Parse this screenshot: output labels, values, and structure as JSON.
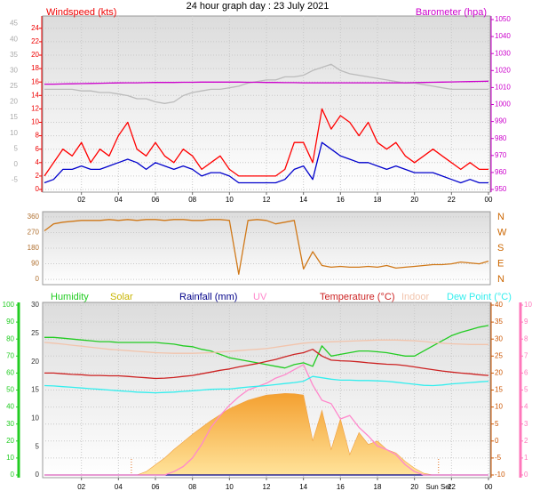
{
  "chart_data": [
    {
      "type": "line",
      "title": "24 hour graph day : 23 July 2021",
      "ylabel": "Windspeed (kts)",
      "y2label": "Barometer (hpa)",
      "x": [
        0,
        0.5,
        1,
        1.5,
        2,
        2.5,
        3,
        3.5,
        4,
        4.5,
        5,
        5.5,
        6,
        6.5,
        7,
        7.5,
        8,
        8.5,
        9,
        9.5,
        10,
        10.5,
        11,
        11.5,
        12,
        12.5,
        13,
        13.5,
        14,
        14.5,
        15,
        15.5,
        16,
        16.5,
        17,
        17.5,
        18,
        18.5,
        19,
        19.5,
        20,
        20.5,
        21,
        21.5,
        22,
        22.5,
        23,
        23.5,
        24
      ],
      "xlim": [
        0,
        24
      ],
      "xticks": [
        {
          "value": 2,
          "label": "02"
        },
        {
          "value": 4,
          "label": "04"
        },
        {
          "value": 6,
          "label": "06"
        },
        {
          "value": 8,
          "label": "08"
        },
        10,
        12,
        14,
        16,
        18,
        20,
        22,
        {
          "value": 24,
          "label": "00"
        }
      ],
      "ylim": [
        0,
        25.3
      ],
      "yticks": [
        0,
        2,
        4,
        6,
        8,
        10,
        12,
        14,
        16,
        18,
        20,
        22,
        24
      ],
      "ycolor": "#ee0000",
      "y2lim": [
        950,
        1050
      ],
      "y2ticks": [
        950,
        960,
        970,
        980,
        990,
        1000,
        1010,
        1020,
        1030,
        1040,
        1050
      ],
      "y2color": "#cc00cc",
      "y3lim": [
        -8,
        46.3
      ],
      "y3ticks": [
        -5,
        0,
        5,
        10,
        15,
        20,
        25,
        30,
        35,
        40,
        45
      ],
      "y3color": "#aaaaaa",
      "grid": true,
      "series": [
        {
          "color": "#bbbbbb",
          "axis": "y3",
          "values": [
            24,
            24,
            24,
            24,
            23.5,
            23.5,
            23,
            23,
            22.5,
            22,
            21,
            21,
            20,
            19.5,
            20,
            22,
            23,
            23.5,
            24,
            24,
            24.5,
            25,
            26,
            26.5,
            27,
            27,
            28,
            28,
            28.5,
            30,
            31,
            32,
            30,
            29,
            28.5,
            28,
            27.5,
            27,
            26.5,
            26,
            26,
            25.5,
            25,
            24.5,
            24,
            24,
            24,
            24,
            24
          ]
        },
        {
          "color": "#ff0000",
          "axis": "y",
          "values": [
            2,
            4,
            6,
            5,
            7,
            4,
            6,
            5,
            8,
            10,
            6,
            5,
            7,
            5,
            4,
            6,
            5,
            3,
            4,
            5,
            3,
            2,
            2,
            2,
            2,
            2,
            3,
            7,
            7,
            4,
            12,
            9,
            11,
            10,
            8,
            10,
            7,
            6,
            7,
            5,
            4,
            5,
            6,
            5,
            4,
            3,
            4,
            3,
            3
          ]
        },
        {
          "color": "#0000cc",
          "axis": "y",
          "values": [
            1,
            1.5,
            3,
            3,
            3.5,
            3,
            3,
            3.5,
            4,
            4.5,
            4,
            3,
            4,
            3.5,
            3,
            3.5,
            3,
            2,
            2.5,
            2.5,
            2,
            1,
            1,
            1,
            1,
            1,
            1.5,
            3,
            3.5,
            1.5,
            7,
            6,
            5,
            4.5,
            4,
            4,
            3.5,
            3,
            3.5,
            3,
            2.5,
            2.5,
            2.5,
            2,
            1.5,
            1,
            1.5,
            1,
            1
          ]
        },
        {
          "color": "#cc00cc",
          "axis": "y2",
          "values": [
            1012.0,
            1012.0,
            1012.1,
            1012.2,
            1012.3,
            1012.4,
            1012.5,
            1012.6,
            1012.7,
            1012.8,
            1012.8,
            1012.9,
            1013.0,
            1013.0,
            1013.0,
            1013.1,
            1013.1,
            1013.2,
            1013.2,
            1013.2,
            1013.2,
            1013.2,
            1013.1,
            1013.1,
            1013.0,
            1013.0,
            1012.9,
            1012.9,
            1012.8,
            1012.8,
            1012.8,
            1012.8,
            1012.8,
            1012.8,
            1012.8,
            1012.8,
            1012.8,
            1012.8,
            1012.8,
            1012.8,
            1012.9,
            1013.0,
            1013.1,
            1013.2,
            1013.3,
            1013.4,
            1013.5,
            1013.6,
            1013.7
          ]
        }
      ]
    },
    {
      "type": "line",
      "x": [
        0,
        0.5,
        1,
        1.5,
        2,
        2.5,
        3,
        3.5,
        4,
        4.5,
        5,
        5.5,
        6,
        6.5,
        7,
        7.5,
        8,
        8.5,
        9,
        9.5,
        10,
        10.5,
        11,
        11.5,
        12,
        12.5,
        13,
        13.5,
        14,
        14.5,
        15,
        15.5,
        16,
        16.5,
        17,
        17.5,
        18,
        18.5,
        19,
        19.5,
        20,
        20.5,
        21,
        21.5,
        22,
        22.5,
        23,
        23.5,
        24
      ],
      "xlim": [
        0,
        24
      ],
      "ylim": [
        -20,
        380
      ],
      "yticks": [
        0,
        90,
        180,
        270,
        360
      ],
      "ycolor": "#b07030",
      "y2lim": [
        -20,
        380
      ],
      "y2ticks": [
        {
          "value": 0,
          "label": "N"
        },
        {
          "value": 90,
          "label": "E"
        },
        {
          "value": 180,
          "label": "S"
        },
        {
          "value": 270,
          "label": "W"
        },
        {
          "value": 360,
          "label": "N"
        }
      ],
      "y2color": "#cc6600",
      "grid": true,
      "series": [
        {
          "color": "#d07818",
          "axis": "y",
          "values": [
            280,
            320,
            330,
            335,
            340,
            340,
            340,
            345,
            340,
            345,
            340,
            345,
            345,
            340,
            345,
            345,
            340,
            340,
            345,
            345,
            340,
            30,
            340,
            345,
            340,
            320,
            330,
            340,
            60,
            160,
            80,
            70,
            75,
            70,
            70,
            75,
            70,
            80,
            65,
            70,
            75,
            80,
            85,
            85,
            90,
            100,
            95,
            90,
            105
          ]
        }
      ]
    },
    {
      "type": "line",
      "x": [
        0,
        0.5,
        1,
        1.5,
        2,
        2.5,
        3,
        3.5,
        4,
        4.5,
        5,
        5.5,
        6,
        6.5,
        7,
        7.5,
        8,
        8.5,
        9,
        9.5,
        10,
        10.5,
        11,
        11.5,
        12,
        12.5,
        13,
        13.5,
        14,
        14.5,
        15,
        15.5,
        16,
        16.5,
        17,
        17.5,
        18,
        18.5,
        19,
        19.5,
        20,
        20.5,
        21,
        21.5,
        22,
        22.5,
        23,
        23.5,
        24
      ],
      "xlim": [
        0,
        24
      ],
      "xticks": [
        {
          "value": 2,
          "label": "02"
        },
        {
          "value": 4,
          "label": "04"
        },
        {
          "value": 6,
          "label": "06"
        },
        {
          "value": 8,
          "label": "08"
        },
        10,
        12,
        14,
        16,
        18,
        20,
        22,
        {
          "value": 24,
          "label": "00"
        }
      ],
      "ylim": [
        0,
        100
      ],
      "yticks": [
        0,
        10,
        20,
        30,
        40,
        50,
        60,
        70,
        80,
        90,
        100
      ],
      "ycolor": "#22cc22",
      "y2lim": [
        -10,
        40
      ],
      "y2ticks": [
        -10,
        -5,
        0,
        5,
        10,
        15,
        20,
        25,
        30,
        35,
        40
      ],
      "y2color": "#cc5500",
      "y3lim": [
        0,
        30
      ],
      "y3ticks": [
        0,
        5,
        10,
        15,
        20,
        25,
        30
      ],
      "y3color": "#333333",
      "y4lim": [
        0,
        10
      ],
      "y4ticks": [
        0,
        1,
        2,
        3,
        4,
        5,
        6,
        7,
        8,
        9,
        10
      ],
      "y4color": "#ff77bb",
      "y5lim": [
        0,
        1000
      ],
      "grid": true,
      "sunrise": 4.7,
      "sunset": 21.3,
      "sunset_label": "Sun Set",
      "series": [
        {
          "name": "Humidity",
          "color": "#22cc22",
          "axis": "y",
          "values": [
            81,
            81,
            80.5,
            80,
            79.5,
            79,
            78.5,
            78.5,
            78,
            78,
            78,
            78,
            78,
            77.5,
            77,
            76,
            75.5,
            74,
            73,
            71,
            69,
            68,
            67,
            66,
            65,
            64,
            63,
            65,
            66,
            64,
            76,
            70,
            71,
            72,
            73,
            73,
            72.5,
            72,
            71,
            70,
            70,
            73,
            76,
            79,
            82,
            84,
            85.5,
            87,
            88
          ]
        },
        {
          "name": "Solar",
          "color": "#c8b400",
          "axis": "y5",
          "area": true,
          "values": [
            0,
            0,
            0,
            0,
            0,
            0,
            0,
            0,
            0,
            0,
            0,
            20,
            60,
            100,
            150,
            195,
            240,
            280,
            320,
            355,
            390,
            415,
            440,
            455,
            470,
            475,
            480,
            478,
            470,
            200,
            380,
            150,
            330,
            120,
            250,
            180,
            200,
            150,
            130,
            80,
            40,
            10,
            0,
            0,
            0,
            0,
            0,
            0,
            0
          ]
        },
        {
          "name": "Rainfall (mm)",
          "color": "#000088",
          "axis": "y3",
          "values": [
            0,
            0,
            0,
            0,
            0,
            0,
            0,
            0,
            0,
            0,
            0,
            0,
            0,
            0,
            0,
            0,
            0,
            0,
            0,
            0,
            0,
            0,
            0,
            0,
            0,
            0,
            0,
            0,
            0,
            0,
            0,
            0,
            0,
            0,
            0,
            0,
            0,
            0,
            0,
            0,
            0,
            0,
            0,
            0,
            0,
            0,
            0,
            0,
            0
          ]
        },
        {
          "name": "UV",
          "color": "#ff88cc",
          "axis": "y4",
          "values": [
            0,
            0,
            0,
            0,
            0,
            0,
            0,
            0,
            0,
            0,
            0,
            0,
            0,
            0,
            0.2,
            0.5,
            1,
            1.8,
            2.8,
            3.5,
            4.1,
            4.6,
            5,
            5.2,
            5.4,
            5.7,
            5.9,
            6.2,
            6.5,
            5.3,
            4.4,
            4.2,
            3.3,
            3.5,
            2.8,
            2.3,
            1.7,
            1.5,
            1.2,
            0.6,
            0.2,
            0,
            0,
            0,
            0,
            0,
            0,
            0,
            0
          ]
        },
        {
          "name": "Temperature (°C)",
          "color": "#cc2222",
          "axis": "y2",
          "values": [
            20,
            20,
            19.8,
            19.6,
            19.5,
            19.3,
            19.3,
            19.2,
            19.2,
            19,
            18.8,
            18.6,
            18.4,
            18.5,
            18.7,
            19,
            19.3,
            19.8,
            20.3,
            20.8,
            21.2,
            21.8,
            22.3,
            22.8,
            23.4,
            24,
            24.8,
            25.5,
            26,
            27,
            25,
            23.8,
            23.6,
            23.5,
            23.3,
            23,
            22.8,
            22.6,
            22.5,
            22.2,
            21.8,
            21.4,
            21,
            20.6,
            20.3,
            20,
            19.8,
            19.5,
            19.3
          ]
        },
        {
          "name": "Indoor",
          "color": "#f2c4ac",
          "axis": "y2",
          "values": [
            29,
            28.8,
            28.5,
            28.2,
            27.9,
            27.6,
            27.3,
            27,
            26.8,
            26.6,
            26.4,
            26.2,
            26,
            25.9,
            25.8,
            25.8,
            25.8,
            25.9,
            26,
            26.2,
            26.4,
            26.6,
            26.8,
            27,
            27.2,
            27.6,
            28,
            28.4,
            28.8,
            29,
            29.1,
            29.2,
            29.3,
            29.4,
            29.5,
            29.6,
            29.7,
            29.7,
            29.7,
            29.6,
            29.5,
            29.3,
            29,
            28.8,
            28.6,
            28.5,
            28.4,
            28.4,
            28.4
          ]
        },
        {
          "name": "Dew Point (°C)",
          "color": "#33eeee",
          "axis": "y2",
          "values": [
            16.3,
            16.2,
            16,
            15.8,
            15.6,
            15.4,
            15.2,
            15,
            14.8,
            14.6,
            14.4,
            14.3,
            14.2,
            14.3,
            14.4,
            14.6,
            14.8,
            15,
            15.2,
            15.3,
            15.3,
            15.6,
            15.9,
            16.1,
            16.3,
            16.6,
            16.9,
            17.2,
            17.6,
            19,
            18.6,
            18.2,
            17.9,
            17.9,
            17.8,
            17.8,
            17.7,
            17.6,
            17.3,
            17,
            16.7,
            16.4,
            16.3,
            16.5,
            16.8,
            17,
            17.2,
            17.4,
            17.6
          ]
        }
      ]
    }
  ]
}
